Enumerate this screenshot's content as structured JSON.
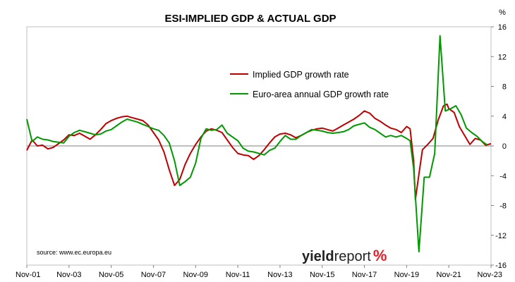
{
  "chart_data": {
    "type": "line",
    "title": "ESI-IMPLIED GDP & ACTUAL GDP",
    "y_unit": "%",
    "ylim": [
      -16,
      16
    ],
    "y_ticks": [
      16,
      12,
      8,
      4,
      0,
      -4,
      -8,
      -12,
      -16
    ],
    "x_tick_labels": [
      "Nov-01",
      "Nov-03",
      "Nov-05",
      "Nov-07",
      "Nov-09",
      "Nov-11",
      "Nov-13",
      "Nov-15",
      "Nov-17",
      "Nov-19",
      "Nov-21",
      "Nov-23"
    ],
    "x_range": [
      "2001-11",
      "2023-11"
    ],
    "grid": false,
    "legend_position": "top-center",
    "colors": {
      "implied": "#c00000",
      "actual": "#009900",
      "brand_pct": "#e81c24"
    },
    "series": [
      {
        "name": "Implied GDP growth rate",
        "color": "#c00000",
        "points": [
          [
            "2001-11",
            -0.6
          ],
          [
            "2002-02",
            0.8
          ],
          [
            "2002-05",
            0.0
          ],
          [
            "2002-08",
            0.1
          ],
          [
            "2002-11",
            -0.4
          ],
          [
            "2003-02",
            -0.2
          ],
          [
            "2003-05",
            0.3
          ],
          [
            "2003-08",
            0.8
          ],
          [
            "2003-11",
            1.5
          ],
          [
            "2004-02",
            1.4
          ],
          [
            "2004-05",
            1.7
          ],
          [
            "2004-08",
            1.3
          ],
          [
            "2004-11",
            0.9
          ],
          [
            "2005-02",
            1.5
          ],
          [
            "2005-05",
            2.2
          ],
          [
            "2005-08",
            3.0
          ],
          [
            "2005-11",
            3.4
          ],
          [
            "2006-02",
            3.7
          ],
          [
            "2006-05",
            3.9
          ],
          [
            "2006-08",
            4.0
          ],
          [
            "2006-11",
            3.8
          ],
          [
            "2007-02",
            3.6
          ],
          [
            "2007-05",
            3.4
          ],
          [
            "2007-08",
            2.8
          ],
          [
            "2007-11",
            1.8
          ],
          [
            "2008-02",
            0.8
          ],
          [
            "2008-05",
            -0.8
          ],
          [
            "2008-08",
            -3.2
          ],
          [
            "2008-11",
            -5.3
          ],
          [
            "2009-02",
            -4.5
          ],
          [
            "2009-05",
            -2.5
          ],
          [
            "2009-08",
            -1.0
          ],
          [
            "2009-11",
            0.2
          ],
          [
            "2010-02",
            1.2
          ],
          [
            "2010-05",
            2.0
          ],
          [
            "2010-08",
            2.3
          ],
          [
            "2010-11",
            2.1
          ],
          [
            "2011-02",
            1.8
          ],
          [
            "2011-05",
            0.8
          ],
          [
            "2011-08",
            -0.2
          ],
          [
            "2011-11",
            -1.0
          ],
          [
            "2012-02",
            -1.2
          ],
          [
            "2012-05",
            -1.3
          ],
          [
            "2012-08",
            -1.8
          ],
          [
            "2012-11",
            -1.3
          ],
          [
            "2013-02",
            -0.5
          ],
          [
            "2013-05",
            0.4
          ],
          [
            "2013-08",
            1.2
          ],
          [
            "2013-11",
            1.6
          ],
          [
            "2014-02",
            1.7
          ],
          [
            "2014-05",
            1.5
          ],
          [
            "2014-08",
            1.1
          ],
          [
            "2014-11",
            1.4
          ],
          [
            "2015-02",
            1.8
          ],
          [
            "2015-05",
            2.1
          ],
          [
            "2015-08",
            2.3
          ],
          [
            "2015-11",
            2.4
          ],
          [
            "2016-02",
            2.2
          ],
          [
            "2016-05",
            2.0
          ],
          [
            "2016-08",
            2.4
          ],
          [
            "2016-11",
            2.8
          ],
          [
            "2017-02",
            3.2
          ],
          [
            "2017-05",
            3.6
          ],
          [
            "2017-08",
            4.1
          ],
          [
            "2017-11",
            4.7
          ],
          [
            "2018-02",
            4.4
          ],
          [
            "2018-05",
            3.7
          ],
          [
            "2018-08",
            3.3
          ],
          [
            "2018-11",
            2.8
          ],
          [
            "2019-02",
            2.4
          ],
          [
            "2019-05",
            2.2
          ],
          [
            "2019-08",
            1.8
          ],
          [
            "2019-11",
            2.6
          ],
          [
            "2020-01",
            2.3
          ],
          [
            "2020-03",
            -2.0
          ],
          [
            "2020-04",
            -7.2
          ],
          [
            "2020-06",
            -3.8
          ],
          [
            "2020-08",
            -0.5
          ],
          [
            "2020-11",
            0.2
          ],
          [
            "2021-02",
            1.0
          ],
          [
            "2021-05",
            3.5
          ],
          [
            "2021-08",
            5.4
          ],
          [
            "2021-10",
            5.6
          ],
          [
            "2021-11",
            5.0
          ],
          [
            "2022-02",
            4.5
          ],
          [
            "2022-05",
            2.6
          ],
          [
            "2022-08",
            1.4
          ],
          [
            "2022-11",
            0.2
          ],
          [
            "2023-02",
            1.0
          ],
          [
            "2023-05",
            0.8
          ],
          [
            "2023-08",
            0.1
          ],
          [
            "2023-11",
            0.3
          ]
        ]
      },
      {
        "name": "Euro-area annual GDP growth rate",
        "color": "#009900",
        "points": [
          [
            "2001-11",
            3.6
          ],
          [
            "2002-02",
            0.6
          ],
          [
            "2002-05",
            1.2
          ],
          [
            "2002-08",
            0.9
          ],
          [
            "2002-11",
            0.8
          ],
          [
            "2003-02",
            0.6
          ],
          [
            "2003-05",
            0.5
          ],
          [
            "2003-08",
            0.4
          ],
          [
            "2003-11",
            1.3
          ],
          [
            "2004-02",
            1.8
          ],
          [
            "2004-05",
            2.1
          ],
          [
            "2004-08",
            1.9
          ],
          [
            "2004-11",
            1.7
          ],
          [
            "2005-02",
            1.5
          ],
          [
            "2005-05",
            1.6
          ],
          [
            "2005-08",
            2.0
          ],
          [
            "2005-11",
            2.2
          ],
          [
            "2006-02",
            2.7
          ],
          [
            "2006-05",
            3.2
          ],
          [
            "2006-08",
            3.6
          ],
          [
            "2006-11",
            3.4
          ],
          [
            "2007-02",
            3.2
          ],
          [
            "2007-05",
            2.9
          ],
          [
            "2007-08",
            2.6
          ],
          [
            "2007-11",
            2.3
          ],
          [
            "2008-02",
            2.1
          ],
          [
            "2008-05",
            1.4
          ],
          [
            "2008-08",
            0.4
          ],
          [
            "2008-11",
            -2.0
          ],
          [
            "2009-02",
            -5.3
          ],
          [
            "2009-05",
            -4.8
          ],
          [
            "2009-08",
            -4.2
          ],
          [
            "2009-11",
            -2.3
          ],
          [
            "2010-02",
            1.0
          ],
          [
            "2010-05",
            2.3
          ],
          [
            "2010-08",
            2.1
          ],
          [
            "2010-11",
            2.2
          ],
          [
            "2011-02",
            2.8
          ],
          [
            "2011-05",
            1.7
          ],
          [
            "2011-08",
            1.2
          ],
          [
            "2011-11",
            0.7
          ],
          [
            "2012-02",
            -0.3
          ],
          [
            "2012-05",
            -0.7
          ],
          [
            "2012-08",
            -0.8
          ],
          [
            "2012-11",
            -1.0
          ],
          [
            "2013-02",
            -1.2
          ],
          [
            "2013-05",
            -0.6
          ],
          [
            "2013-08",
            -0.3
          ],
          [
            "2013-11",
            0.6
          ],
          [
            "2014-02",
            1.4
          ],
          [
            "2014-05",
            0.9
          ],
          [
            "2014-08",
            0.9
          ],
          [
            "2014-11",
            1.4
          ],
          [
            "2015-02",
            1.8
          ],
          [
            "2015-05",
            2.2
          ],
          [
            "2015-08",
            2.1
          ],
          [
            "2015-11",
            2.0
          ],
          [
            "2016-02",
            1.8
          ],
          [
            "2016-05",
            1.7
          ],
          [
            "2016-08",
            1.8
          ],
          [
            "2016-11",
            1.9
          ],
          [
            "2017-02",
            2.2
          ],
          [
            "2017-05",
            2.7
          ],
          [
            "2017-08",
            2.9
          ],
          [
            "2017-11",
            3.1
          ],
          [
            "2018-02",
            2.5
          ],
          [
            "2018-05",
            2.2
          ],
          [
            "2018-08",
            1.7
          ],
          [
            "2018-11",
            1.2
          ],
          [
            "2019-02",
            1.4
          ],
          [
            "2019-05",
            1.2
          ],
          [
            "2019-08",
            1.4
          ],
          [
            "2019-11",
            1.0
          ],
          [
            "2020-01",
            0.7
          ],
          [
            "2020-03",
            -3.0
          ],
          [
            "2020-06",
            -14.2
          ],
          [
            "2020-09",
            -4.2
          ],
          [
            "2020-12",
            -4.2
          ],
          [
            "2021-03",
            -1.0
          ],
          [
            "2021-06",
            14.8
          ],
          [
            "2021-09",
            4.7
          ],
          [
            "2021-12",
            5.0
          ],
          [
            "2022-03",
            5.4
          ],
          [
            "2022-06",
            4.2
          ],
          [
            "2022-09",
            2.4
          ],
          [
            "2022-12",
            1.8
          ],
          [
            "2023-03",
            1.3
          ],
          [
            "2023-06",
            0.6
          ],
          [
            "2023-09",
            0.1
          ]
        ]
      }
    ],
    "source_text": "source: www.ec.europa.eu",
    "brand": {
      "word_bold": "yield",
      "word_light": "report",
      "pct": "%"
    }
  }
}
